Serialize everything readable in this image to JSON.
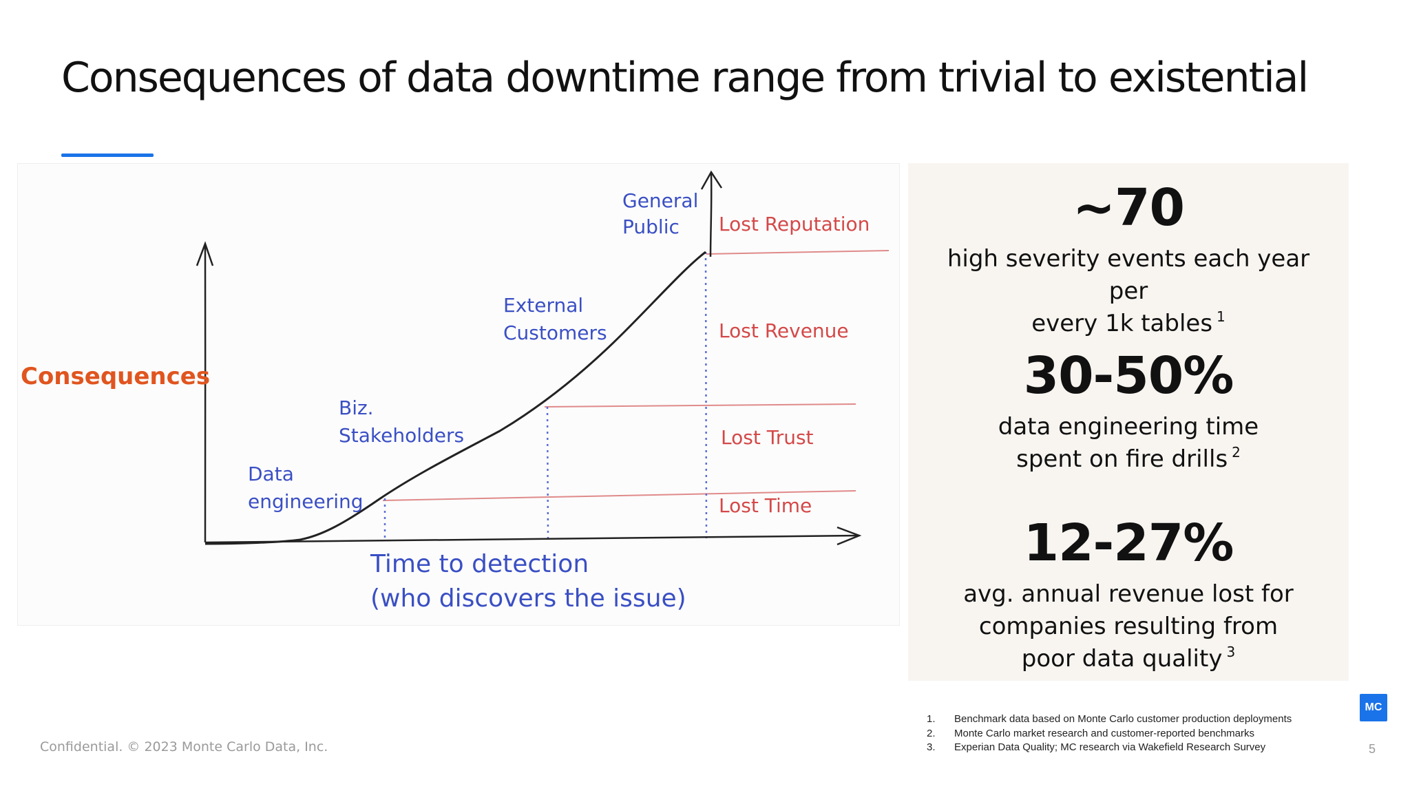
{
  "slide": {
    "title": "Consequences of data downtime range from trivial to existential",
    "page_number": "5",
    "logo_text": "MC",
    "confidential": "Confidential. © 2023 Monte Carlo Data, Inc."
  },
  "diagram": {
    "y_axis_label": "Consequences",
    "x_axis_label_line1": "Time to detection",
    "x_axis_label_line2": "(who discovers the issue)",
    "discoverers": [
      {
        "line1": "Data",
        "line2": "engineering"
      },
      {
        "line1": "Biz.",
        "line2": "Stakeholders"
      },
      {
        "line1": "External",
        "line2": "Customers"
      },
      {
        "line1": "General",
        "line2": "Public"
      }
    ],
    "consequences": [
      "Lost Reputation",
      "Lost Revenue",
      "Lost Trust",
      "Lost Time"
    ],
    "colors": {
      "blue_text": "#3a4fc4",
      "orange_text": "#e0551f",
      "red_text": "#d44848",
      "line": "#e08a8a",
      "ink": "#222222",
      "dots": "#5a6ed6"
    }
  },
  "stats": [
    {
      "value": "~70",
      "desc_line1": "high severity events each year per",
      "desc_line2": "every 1k tables",
      "desc_line3": "",
      "footnote_ref": "1"
    },
    {
      "value": "30-50%",
      "desc_line1": "data engineering time",
      "desc_line2": "spent on fire drills",
      "desc_line3": "",
      "footnote_ref": "2"
    },
    {
      "value": "12-27%",
      "desc_line1": "avg. annual revenue lost for",
      "desc_line2": "companies resulting from",
      "desc_line3": "poor data quality",
      "footnote_ref": "3"
    }
  ],
  "footnotes": [
    {
      "num": "1.",
      "text": "Benchmark data based on Monte Carlo customer production deployments"
    },
    {
      "num": "2.",
      "text": "Monte Carlo market research and customer-reported benchmarks"
    },
    {
      "num": "3.",
      "text": "Experian Data Quality; MC research via Wakefield Research Survey"
    }
  ]
}
